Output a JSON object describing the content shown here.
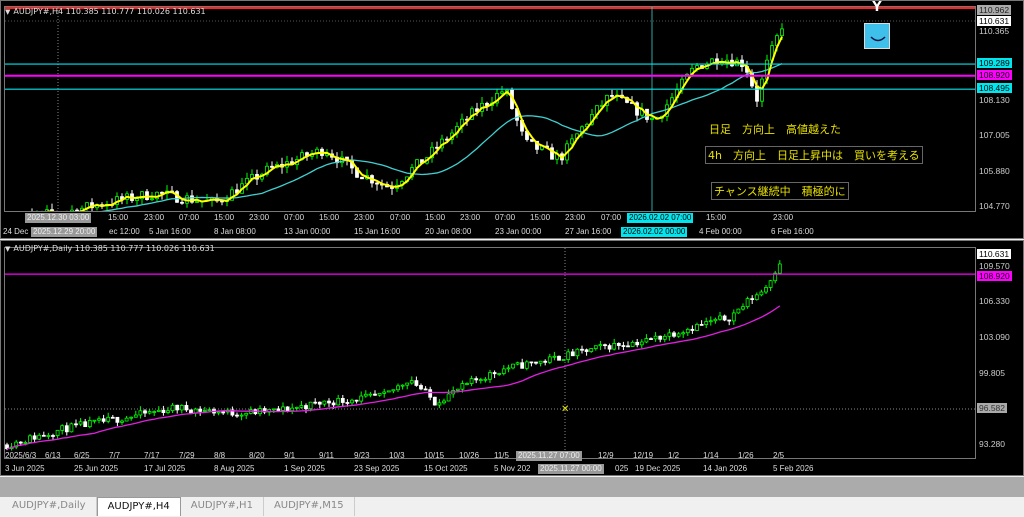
{
  "top_chart": {
    "header": "AUDJPY#,H4  110.385 110.777 110.026 110.631",
    "price_axis": [
      "110.365",
      "108.130",
      "107.005",
      "105.880",
      "104.770"
    ],
    "price_labels": {
      "high": "110.962",
      "bid": "110.631",
      "line1": "109.289",
      "line2": "108.920",
      "line3": "108.495"
    },
    "time_row1": [
      "15:00",
      "23:00",
      "07:00",
      "15:00",
      "23:00",
      "07:00",
      "15:00",
      "23:00",
      "07:00",
      "15:00",
      "23:00",
      "07:00",
      "15:00",
      "23:00",
      "07:00",
      "15:00",
      "23:00"
    ],
    "time_row2": [
      "24 Dec",
      "ec 12:00",
      "5 Jan 16:00",
      "8 Jan 08:00",
      "13 Jan 00:00",
      "15 Jan 16:00",
      "20 Jan 08:00",
      "23 Jan 00:00",
      "27 Jan 16:00",
      "4 Feb 00:00",
      "6 Feb 16:00"
    ],
    "crosshair_time_row1": "2025.12.30 03:00",
    "crosshair_time_row2": "2025.12.29 20:00",
    "highlight_time_row1": "2026.02.02 07:00",
    "highlight_time_row2": "2026.02.02 00:00",
    "notes": [
      "日足　方向上　高値越えた",
      "4h　方向上　日足上昇中は　買いを考える",
      "チャンス継続中　積極的に"
    ]
  },
  "bottom_chart": {
    "header": "AUDJPY#,Daily  110.385 110.777 110.026 110.631",
    "price_axis": [
      "109.570",
      "106.330",
      "103.090",
      "99.805",
      "93.280"
    ],
    "price_labels": {
      "bid": "110.631",
      "line": "108.920",
      "crosshair": "96.582"
    },
    "time_row1": [
      "2025/6/3",
      "6/13",
      "6/25",
      "7/7",
      "7/17",
      "7/29",
      "8/8",
      "8/20",
      "9/1",
      "9/11",
      "9/23",
      "10/3",
      "10/15",
      "10/26",
      "11/5",
      "12/9",
      "12/19",
      "1/2",
      "1/14",
      "1/26",
      "2/5"
    ],
    "time_row2": [
      "3 Jun 2025",
      "25 Jun 2025",
      "17 Jul 2025",
      "8 Aug 2025",
      "1 Sep 2025",
      "23 Sep 2025",
      "15 Oct 2025",
      "5 Nov 202",
      "025",
      "19 Dec 2025",
      "14 Jan 2026",
      "5 Feb 2026"
    ],
    "crosshair_time_row1": "2025.11.27 07:00",
    "crosshair_time_row2": "2025.11.27 00:00"
  },
  "tabs": [
    "AUDJPY#,Daily",
    "AUDJPY#,H4",
    "AUDJPY#,H1",
    "AUDJPY#,M15"
  ],
  "active_tab": 1,
  "colors": {
    "bull": "#00ff00",
    "bear": "#ffffff",
    "fast_ma": "#ffff00",
    "slow_ma": "#40d0d0",
    "daily_ma": "#e020e0",
    "cyan_line": "#00e5ee",
    "magenta_line": "#ff00ff",
    "high_line": "#ff2020",
    "logo": "#3ec0ea"
  }
}
